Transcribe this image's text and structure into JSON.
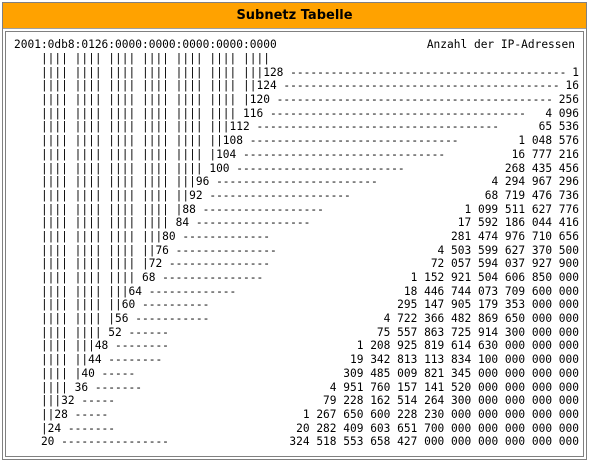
{
  "title": "Subnetz Tabelle",
  "header": {
    "ip_address": "2001:0db8:0126:0000:0000:0000:0000:0000",
    "column_label": "Anzahl der IP-Adressen",
    "marker_line": "    |||| |||| |||| |||| |||| |||| ||||"
  },
  "rows": [
    {
      "tree": "    |||| |||| |||| |||| |||| |||| |||128 ------------------------------------------------",
      "count": "1"
    },
    {
      "tree": "    |||| |||| |||| |||| |||| |||| ||124 ---------------------------------------------",
      "count": "16"
    },
    {
      "tree": "    |||| |||| |||| |||| |||| |||| |120 --------------------------------------------",
      "count": "256"
    },
    {
      "tree": "    |||| |||| |||| |||| |||| |||| 116 --------------------------------------",
      "count": "4 096"
    },
    {
      "tree": "    |||| |||| |||| |||| |||| |||112 ------------------------------------",
      "count": "65 536"
    },
    {
      "tree": "    |||| |||| |||| |||| |||| ||108 -------------------------------",
      "count": "1 048 576"
    },
    {
      "tree": "    |||| |||| |||| |||| |||| |104 ------------------------------",
      "count": "16 777 216"
    },
    {
      "tree": "    |||| |||| |||| |||| |||| 100 -------------------------",
      "count": "268 435 456"
    },
    {
      "tree": "    |||| |||| |||| |||| |||96 ------------------------",
      "count": "4 294 967 296"
    },
    {
      "tree": "    |||| |||| |||| |||| ||92 ---------------------",
      "count": "68 719 476 736"
    },
    {
      "tree": "    |||| |||| |||| |||| |88 ------------------",
      "count": "1 099 511 627 776"
    },
    {
      "tree": "    |||| |||| |||| |||| 84 -----------------",
      "count": "17 592 186 044 416"
    },
    {
      "tree": "    |||| |||| |||| |||80 -------------",
      "count": "281 474 976 710 656"
    },
    {
      "tree": "    |||| |||| |||| ||76 ---------------",
      "count": "4 503 599 627 370 500"
    },
    {
      "tree": "    |||| |||| |||| |72 ---------------",
      "count": "72 057 594 037 927 900"
    },
    {
      "tree": "    |||| |||| |||| 68 ---------------",
      "count": "1 152 921 504 606 850 000"
    },
    {
      "tree": "    |||| |||| |||64 -------------",
      "count": "18 446 744 073 709 600 000"
    },
    {
      "tree": "    |||| |||| ||60 ----------",
      "count": "295 147 905 179 353 000 000"
    },
    {
      "tree": "    |||| |||| |56 -----------",
      "count": "4 722 366 482 869 650 000 000"
    },
    {
      "tree": "    |||| |||| 52 ------",
      "count": "75 557 863 725 914 300 000 000"
    },
    {
      "tree": "    |||| |||48 --------",
      "count": "1 208 925 819 614 630 000 000 000"
    },
    {
      "tree": "    |||| ||44 --------",
      "count": "19 342 813 113 834 100 000 000 000"
    },
    {
      "tree": "    |||| |40 -----",
      "count": "309 485 009 821 345 000 000 000 000"
    },
    {
      "tree": "    |||| 36 -------",
      "count": "4 951 760 157 141 520 000 000 000 000"
    },
    {
      "tree": "    |||32 -----",
      "count": "79 228 162 514 264 300 000 000 000 000"
    },
    {
      "tree": "    ||28 -----",
      "count": "1 267 650 600 228 230 000 000 000 000 000"
    },
    {
      "tree": "    |24 -------",
      "count": "20 282 409 603 651 700 000 000 000 000 000"
    },
    {
      "tree": "    20 ----------------",
      "count": "324 518 553 658 427 000 000 000 000 000 000"
    }
  ]
}
